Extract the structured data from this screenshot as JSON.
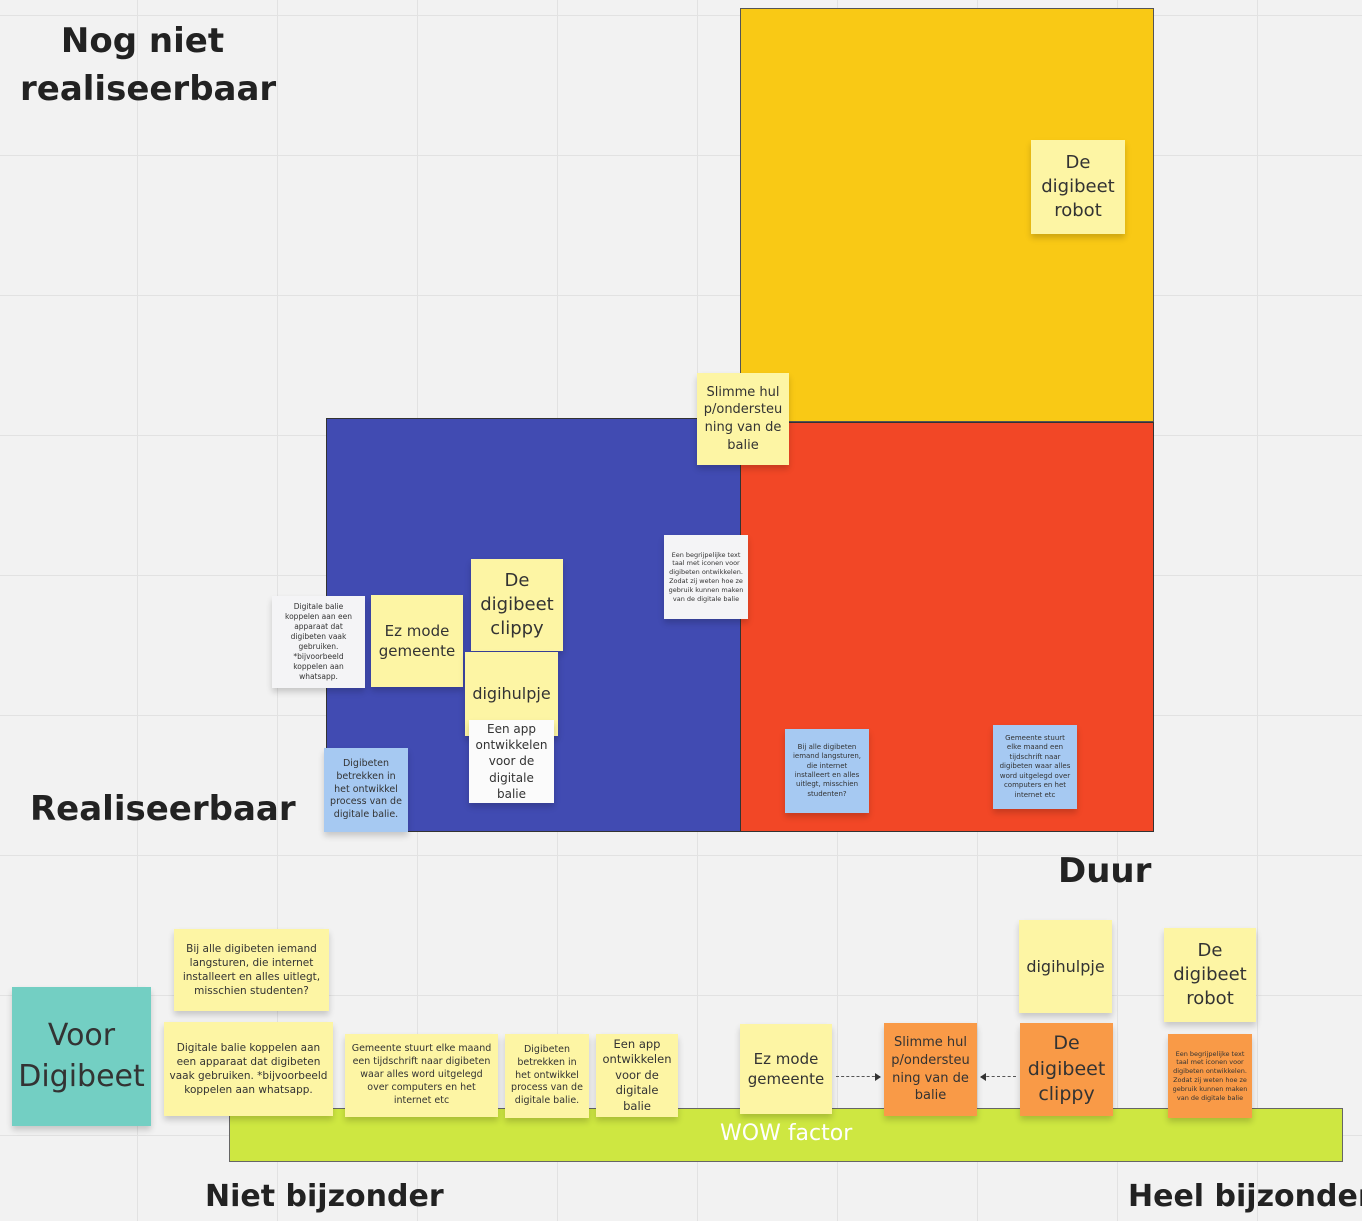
{
  "axis_labels": {
    "top_left": "Nog niet realiseerbaar",
    "left_mid": "Realiseerbaar",
    "duur": "Duur",
    "niet_bijzonder": "Niet bijzonder",
    "heel_bijzonder": "Heel bijzonder"
  },
  "colors": {
    "yellow_quadrant": "#f9c915",
    "blue_quadrant": "#414bb2",
    "red_quadrant": "#f24726",
    "wow_bar": "#cee741",
    "sticky_yellow": "#fdf5a4",
    "sticky_blue": "#a6c9f2",
    "sticky_orange": "#f99a47",
    "sticky_teal": "#73cfc3",
    "sticky_white": "#f4f4f6"
  },
  "matrix_notes": {
    "digibeet_robot": "De digibeet robot",
    "slimme_hulp": "Slimme hulp/ondersteuning van de balie",
    "begrijpelijke_text": "Een begrijpelijke text taal met iconen voor digibeten ontwikkelen. Zodat zij weten hoe ze gebruik kunnen maken van de digitale balie",
    "digibeet_clippy": "De digibeet clippy",
    "ez_mode": "Ez mode gemeente",
    "digitale_balie_koppelen": "Digitale balie koppelen aan een apparaat dat digibeten vaak gebruiken. *bijvoorbeeld koppelen aan whatsapp.",
    "digihulpje": "digihulpje",
    "app_ontwikkelen": "Een app ontwikkelen voor de digitale balie",
    "digibeten_betrekken": "Digibeten betrekken in het ontwikkel process van de digitale balie.",
    "iemand_langsturen": "Bij alle digibeten iemand langsturen, die internet installeert en alles uitlegt, misschien studenten?",
    "tijdschrift": "Gemeente stuurt elke maand een tijdschrift naar digibeten waar alles word uitgelegd over computers en het internet etc"
  },
  "wow_scale": {
    "bar_label": "WOW factor",
    "voor_digibeet": "Voor Digibeet",
    "notes": {
      "iemand_langsturen": "Bij alle digibeten iemand langsturen, die internet installeert en alles uitlegt, misschien studenten?",
      "digitale_balie_koppelen": "Digitale balie koppelen aan een apparaat dat digibeten vaak gebruiken. *bijvoorbeeld koppelen aan whatsapp.",
      "tijdschrift": "Gemeente stuurt elke maand een tijdschrift naar digibeten waar alles word uitgelegd over computers en het internet etc",
      "digibeten_betrekken": "Digibeten betrekken in het ontwikkel process van de digitale balie.",
      "app_ontwikkelen": "Een app ontwikkelen voor de digitale balie",
      "ez_mode": "Ez mode gemeente",
      "slimme_hulp": "Slimme hulp/ondersteuning van de balie",
      "digihulpje": "digihulpje",
      "digibeet_clippy": "De digibeet clippy",
      "digibeet_robot": "De digibeet robot",
      "begrijpelijke_text": "Een begrijpelijke text taal met iconen voor digibeten ontwikkelen. Zodat zij weten hoe ze gebruik kunnen maken van de digitale balie"
    }
  }
}
